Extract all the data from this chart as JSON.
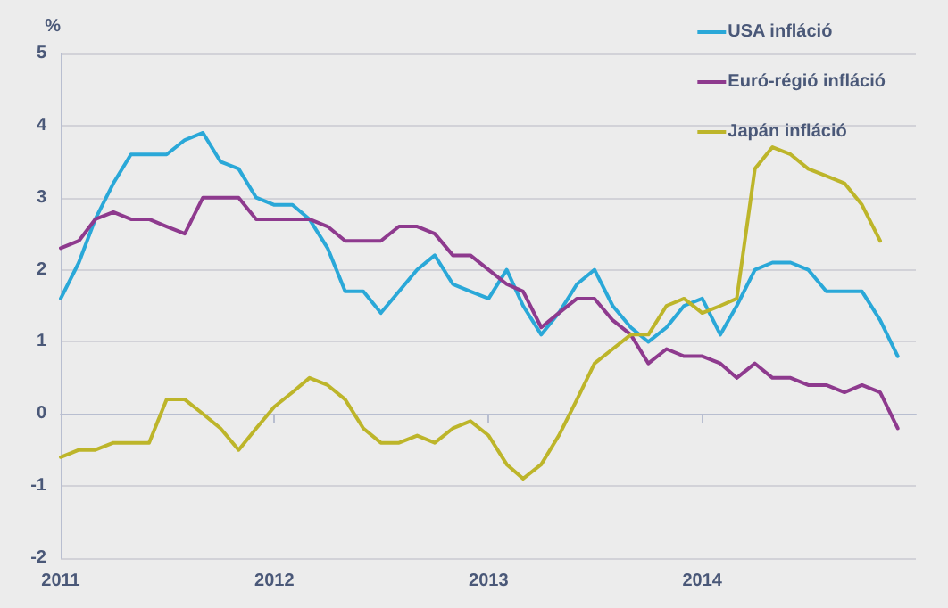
{
  "chart_data": {
    "type": "line",
    "ylabel": "%",
    "x": [
      "2011-01",
      "2011-02",
      "2011-03",
      "2011-04",
      "2011-05",
      "2011-06",
      "2011-07",
      "2011-08",
      "2011-09",
      "2011-10",
      "2011-11",
      "2011-12",
      "2012-01",
      "2012-02",
      "2012-03",
      "2012-04",
      "2012-05",
      "2012-06",
      "2012-07",
      "2012-08",
      "2012-09",
      "2012-10",
      "2012-11",
      "2012-12",
      "2013-01",
      "2013-02",
      "2013-03",
      "2013-04",
      "2013-05",
      "2013-06",
      "2013-07",
      "2013-08",
      "2013-09",
      "2013-10",
      "2013-11",
      "2013-12",
      "2014-01",
      "2014-02",
      "2014-03",
      "2014-04",
      "2014-05",
      "2014-06",
      "2014-07",
      "2014-08",
      "2014-09",
      "2014-10",
      "2014-11",
      "2014-12"
    ],
    "series": [
      {
        "name": "USA infláció",
        "color": "#2aa8d8",
        "values": [
          1.6,
          2.1,
          2.7,
          3.2,
          3.6,
          3.6,
          3.6,
          3.8,
          3.9,
          3.5,
          3.4,
          3.0,
          2.9,
          2.9,
          2.7,
          2.3,
          1.7,
          1.7,
          1.4,
          1.7,
          2.0,
          2.2,
          1.8,
          1.7,
          1.6,
          2.0,
          1.5,
          1.1,
          1.4,
          1.8,
          2.0,
          1.5,
          1.2,
          1.0,
          1.2,
          1.5,
          1.6,
          1.1,
          1.5,
          2.0,
          2.1,
          2.1,
          2.0,
          1.7,
          1.7,
          1.7,
          1.3,
          0.8
        ]
      },
      {
        "name": "Euró-régió infláció",
        "color": "#8e3a8e",
        "values": [
          2.3,
          2.4,
          2.7,
          2.8,
          2.7,
          2.7,
          2.6,
          2.5,
          3.0,
          3.0,
          3.0,
          2.7,
          2.7,
          2.7,
          2.7,
          2.6,
          2.4,
          2.4,
          2.4,
          2.6,
          2.6,
          2.5,
          2.2,
          2.2,
          2.0,
          1.8,
          1.7,
          1.2,
          1.4,
          1.6,
          1.6,
          1.3,
          1.1,
          0.7,
          0.9,
          0.8,
          0.8,
          0.7,
          0.5,
          0.7,
          0.5,
          0.5,
          0.4,
          0.4,
          0.3,
          0.4,
          0.3,
          -0.2
        ]
      },
      {
        "name": "Japán infláció",
        "color": "#bdb52a",
        "values": [
          -0.6,
          -0.5,
          -0.5,
          -0.4,
          -0.4,
          -0.4,
          0.2,
          0.2,
          0.0,
          -0.2,
          -0.5,
          -0.2,
          0.1,
          0.3,
          0.5,
          0.4,
          0.2,
          -0.2,
          -0.4,
          -0.4,
          -0.3,
          -0.4,
          -0.2,
          -0.1,
          -0.3,
          -0.7,
          -0.9,
          -0.7,
          -0.3,
          0.2,
          0.7,
          0.9,
          1.1,
          1.1,
          1.5,
          1.6,
          1.4,
          1.5,
          1.6,
          3.4,
          3.7,
          3.6,
          3.4,
          3.3,
          3.2,
          2.9,
          2.4,
          null
        ]
      }
    ],
    "xlim": [
      "2011-01",
      "2015-01"
    ],
    "xticks": [
      "2011",
      "2012",
      "2013",
      "2014"
    ],
    "ylim": [
      -2,
      5
    ],
    "yticks": [
      -2,
      -1,
      0,
      1,
      2,
      3,
      4,
      5
    ],
    "grid": "y",
    "legend": "top right",
    "marker": "none",
    "line_style": "solid"
  }
}
